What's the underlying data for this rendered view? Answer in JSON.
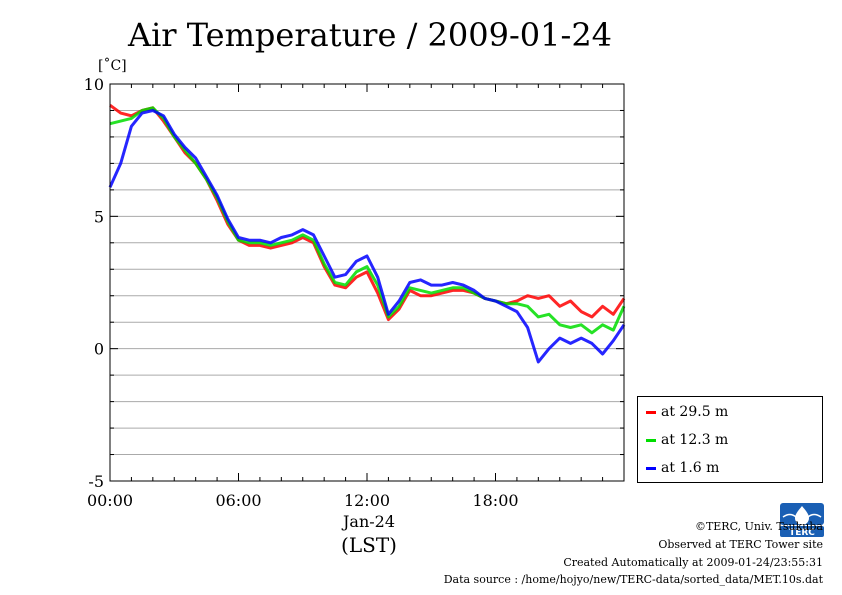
{
  "chart_data": {
    "type": "line",
    "title": "Air Temperature / 2009-01-24",
    "ylabel": "[˚C]",
    "xlabel": "(LST)",
    "date_label": "Jan-24",
    "xlim": [
      0,
      24
    ],
    "ylim": [
      -5,
      10
    ],
    "x_ticks": [
      0,
      6,
      12,
      18
    ],
    "x_tick_labels": [
      "00:00",
      "06:00",
      "12:00",
      "18:00"
    ],
    "y_ticks": [
      10,
      5,
      0,
      -5
    ],
    "y_tick_labels": [
      "10",
      "5",
      "0",
      "-5"
    ],
    "grid": true,
    "legend_position": "bottom-right-outside",
    "x": [
      0,
      0.5,
      1,
      1.5,
      2,
      2.5,
      3,
      3.5,
      4,
      4.5,
      5,
      5.5,
      6,
      6.5,
      7,
      7.5,
      8,
      8.5,
      9,
      9.5,
      10,
      10.5,
      11,
      11.5,
      12,
      12.5,
      13,
      13.5,
      14,
      14.5,
      15,
      15.5,
      16,
      16.5,
      17,
      17.5,
      18,
      18.5,
      19,
      19.5,
      20,
      20.5,
      21,
      21.5,
      22,
      22.5,
      23,
      23.5,
      24
    ],
    "series": [
      {
        "name": "at 29.5 m",
        "color": "#ff0000",
        "values": [
          9.2,
          8.9,
          8.8,
          9.0,
          9.1,
          8.6,
          8.0,
          7.4,
          7.0,
          6.4,
          5.6,
          4.7,
          4.1,
          3.9,
          3.9,
          3.8,
          3.9,
          4.0,
          4.2,
          4.0,
          3.1,
          2.4,
          2.3,
          2.7,
          2.9,
          2.1,
          1.1,
          1.5,
          2.2,
          2.0,
          2.0,
          2.1,
          2.2,
          2.2,
          2.1,
          1.9,
          1.8,
          1.7,
          1.8,
          2.0,
          1.9,
          2.0,
          1.6,
          1.8,
          1.4,
          1.2,
          1.6,
          1.3,
          1.9
        ]
      },
      {
        "name": "at 12.3 m",
        "color": "#00dd00",
        "values": [
          8.5,
          8.6,
          8.7,
          9.0,
          9.1,
          8.7,
          8.0,
          7.5,
          7.0,
          6.4,
          5.7,
          4.8,
          4.1,
          4.0,
          4.0,
          3.9,
          4.0,
          4.1,
          4.3,
          4.1,
          3.2,
          2.5,
          2.4,
          2.9,
          3.1,
          2.4,
          1.2,
          1.6,
          2.3,
          2.2,
          2.1,
          2.2,
          2.3,
          2.3,
          2.1,
          1.9,
          1.8,
          1.7,
          1.7,
          1.6,
          1.2,
          1.3,
          0.9,
          0.8,
          0.9,
          0.6,
          0.9,
          0.7,
          1.6
        ]
      },
      {
        "name": "at 1.6 m",
        "color": "#0000ff",
        "values": [
          6.1,
          7.0,
          8.4,
          8.9,
          9.0,
          8.8,
          8.1,
          7.6,
          7.2,
          6.5,
          5.8,
          4.9,
          4.2,
          4.1,
          4.1,
          4.0,
          4.2,
          4.3,
          4.5,
          4.3,
          3.5,
          2.7,
          2.8,
          3.3,
          3.5,
          2.7,
          1.3,
          1.8,
          2.5,
          2.6,
          2.4,
          2.4,
          2.5,
          2.4,
          2.2,
          1.9,
          1.8,
          1.6,
          1.4,
          0.8,
          -0.5,
          0.0,
          0.4,
          0.2,
          0.4,
          0.2,
          -0.2,
          0.3,
          0.9
        ]
      }
    ]
  },
  "footer": {
    "copyright": "©TERC, Univ. Tsukuba",
    "site": "Observed at TERC Tower site",
    "created": "Created Automatically at 2009-01-24/23:55:31",
    "source": "Data source : /home/hojyo/new/TERC-data/sorted_data/MET.10s.dat",
    "logo_text": "TERC"
  }
}
